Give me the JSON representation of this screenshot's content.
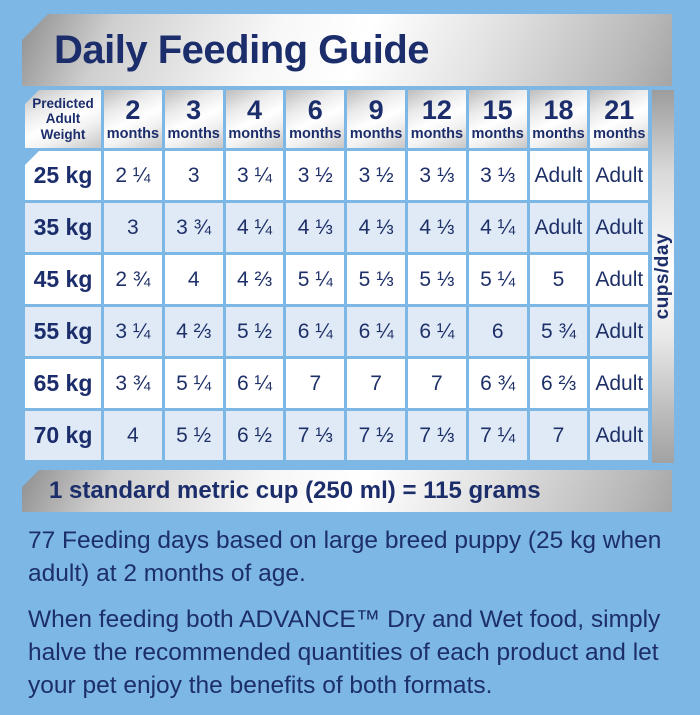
{
  "title": "Daily Feeding Guide",
  "colors": {
    "background": "#7db7e5",
    "navy_text": "#1b2d6b",
    "row_white": "#ffffff",
    "row_pale_blue": "#dfeaf6",
    "silver_bar": "#d9d9d9"
  },
  "table": {
    "corner_header_lines": [
      "Predicted",
      "Adult",
      "Weight"
    ],
    "age_columns": [
      "2",
      "3",
      "4",
      "6",
      "9",
      "12",
      "15",
      "18",
      "21"
    ],
    "months_label": "months",
    "unit_label": "cups/day",
    "rows": [
      {
        "weight": "25 kg",
        "values": [
          "2 ¼",
          "3",
          "3 ¼",
          "3 ½",
          "3 ½",
          "3 ⅓",
          "3 ⅓",
          "Adult",
          "Adult"
        ]
      },
      {
        "weight": "35 kg",
        "values": [
          "3",
          "3 ¾",
          "4 ¼",
          "4 ⅓",
          "4 ⅓",
          "4 ⅓",
          "4 ¼",
          "Adult",
          "Adult"
        ]
      },
      {
        "weight": "45 kg",
        "values": [
          "2 ¾",
          "4",
          "4 ⅔",
          "5 ¼",
          "5 ⅓",
          "5 ⅓",
          "5 ¼",
          "5",
          "Adult"
        ]
      },
      {
        "weight": "55 kg",
        "values": [
          "3 ¼",
          "4 ⅔",
          "5 ½",
          "6 ¼",
          "6 ¼",
          "6 ¼",
          "6",
          "5 ¾",
          "Adult"
        ]
      },
      {
        "weight": "65 kg",
        "values": [
          "3 ¾",
          "5 ¼",
          "6 ¼",
          "7",
          "7",
          "7",
          "6 ¾",
          "6 ⅔",
          "Adult"
        ]
      },
      {
        "weight": "70 kg",
        "values": [
          "4",
          "5 ½",
          "6 ½",
          "7 ⅓",
          "7 ½",
          "7 ⅓",
          "7 ¼",
          "7",
          "Adult"
        ]
      }
    ]
  },
  "cup_note": "1 standard metric cup (250 ml) = 115 grams",
  "notes": [
    "77 Feeding days based on large breed puppy (25 kg when adult) at 2 months of age.",
    "When feeding both ADVANCE™ Dry and Wet food, simply halve the recommended quantities of each product and let your pet enjoy the benefits of both formats."
  ]
}
